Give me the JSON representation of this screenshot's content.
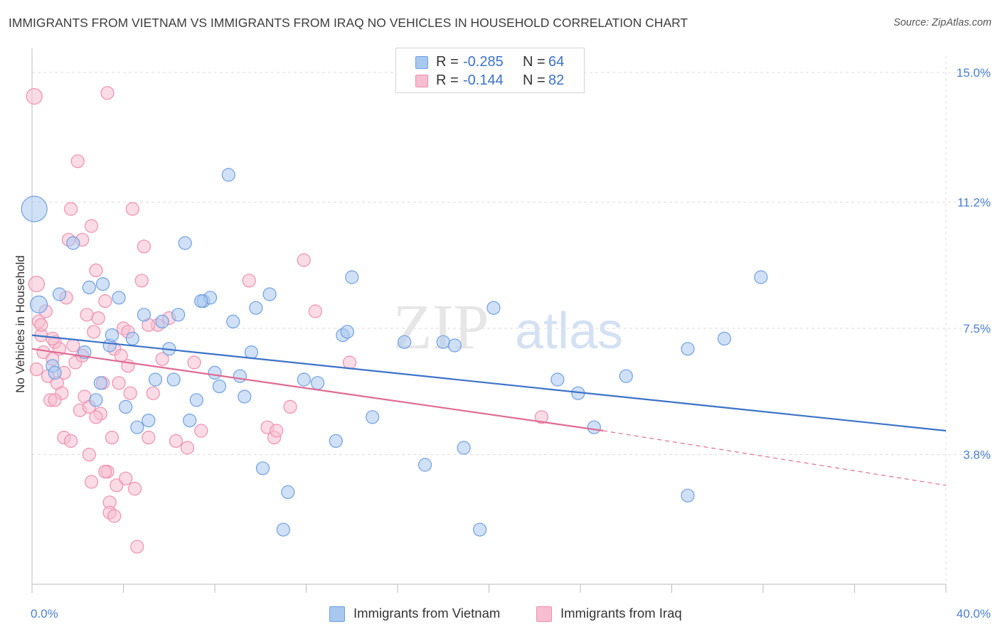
{
  "title": "IMMIGRANTS FROM VIETNAM VS IMMIGRANTS FROM IRAQ NO VEHICLES IN HOUSEHOLD CORRELATION CHART",
  "source": "Source: ZipAtlas.com",
  "watermark": {
    "zip": "ZIP",
    "atlas": "atlas"
  },
  "colors": {
    "vietnam_fill": "#a9c8f0",
    "vietnam_stroke": "#6f9fe0",
    "vietnam_line": "#3b72c9",
    "iraq_fill": "#f7bdd0",
    "iraq_stroke": "#ee8fb0",
    "iraq_line": "#e06a94",
    "grid": "#dcdcdc",
    "tick_text": "#4a7fd0"
  },
  "legend": {
    "rows": [
      {
        "r_label": "R =",
        "r_value": "-0.285",
        "n_label": "N =",
        "n_value": "64",
        "color": "#a9c8f0",
        "stroke": "#6f9fe0"
      },
      {
        "r_label": "R =",
        "r_value": "-0.144",
        "n_label": "N =",
        "n_value": "82",
        "color": "#f7bdd0",
        "stroke": "#ee8fb0"
      }
    ]
  },
  "bottom_legend": [
    "Immigrants from Vietnam",
    "Immigrants from Iraq"
  ],
  "chart_data": {
    "type": "scatter",
    "title": "IMMIGRANTS FROM VIETNAM VS IMMIGRANTS FROM IRAQ NO VEHICLES IN HOUSEHOLD CORRELATION CHART",
    "xlabel": "",
    "ylabel": "No Vehicles in Household",
    "xlim": [
      0,
      40
    ],
    "ylim": [
      0,
      15.5
    ],
    "x_tick_labels": [
      "0.0%",
      "40.0%"
    ],
    "y_ticks": [
      3.8,
      7.5,
      11.2,
      15.0
    ],
    "y_tick_labels": [
      "3.8%",
      "7.5%",
      "11.2%",
      "15.0%"
    ],
    "grid": true,
    "series": [
      {
        "name": "Immigrants from Vietnam",
        "r": -0.285,
        "n": 64,
        "trend": {
          "x0": 0,
          "y0": 7.3,
          "x1": 40,
          "y1": 4.5,
          "dashed_from": null
        },
        "points": [
          [
            0.1,
            11.0,
            18
          ],
          [
            0.3,
            8.2,
            12
          ],
          [
            1.2,
            8.5,
            9
          ],
          [
            0.9,
            6.4,
            9
          ],
          [
            1.0,
            6.2,
            9
          ],
          [
            1.8,
            10.0,
            9
          ],
          [
            2.5,
            8.7,
            9
          ],
          [
            2.3,
            6.8,
            9
          ],
          [
            2.8,
            5.4,
            9
          ],
          [
            3.0,
            5.9,
            9
          ],
          [
            3.1,
            8.8,
            9
          ],
          [
            3.4,
            7.0,
            9
          ],
          [
            3.5,
            7.3,
            9
          ],
          [
            3.8,
            8.4,
            9
          ],
          [
            4.1,
            5.2,
            9
          ],
          [
            4.4,
            7.2,
            9
          ],
          [
            4.6,
            4.6,
            9
          ],
          [
            4.9,
            7.9,
            9
          ],
          [
            5.1,
            4.8,
            9
          ],
          [
            5.4,
            6.0,
            9
          ],
          [
            5.7,
            7.7,
            9
          ],
          [
            6.0,
            6.9,
            9
          ],
          [
            6.2,
            6.0,
            9
          ],
          [
            6.4,
            7.9,
            9
          ],
          [
            6.7,
            10.0,
            9
          ],
          [
            6.9,
            4.8,
            9
          ],
          [
            7.2,
            5.4,
            9
          ],
          [
            7.5,
            8.3,
            9
          ],
          [
            7.8,
            8.4,
            9
          ],
          [
            8.0,
            6.2,
            9
          ],
          [
            8.2,
            5.8,
            9
          ],
          [
            8.6,
            12.0,
            9
          ],
          [
            8.8,
            7.7,
            9
          ],
          [
            9.1,
            6.1,
            9
          ],
          [
            9.3,
            5.5,
            9
          ],
          [
            9.6,
            6.8,
            9
          ],
          [
            9.8,
            8.1,
            9
          ],
          [
            10.1,
            3.4,
            9
          ],
          [
            10.4,
            8.5,
            9
          ],
          [
            11.0,
            1.6,
            9
          ],
          [
            11.2,
            2.7,
            9
          ],
          [
            11.9,
            6.0,
            9
          ],
          [
            12.5,
            5.9,
            9
          ],
          [
            13.3,
            4.2,
            9
          ],
          [
            13.6,
            7.3,
            9
          ],
          [
            13.8,
            7.4,
            9
          ],
          [
            14.0,
            9.0,
            9
          ],
          [
            14.9,
            4.9,
            9
          ],
          [
            16.3,
            7.1,
            9
          ],
          [
            17.2,
            3.5,
            9
          ],
          [
            18.0,
            7.1,
            9
          ],
          [
            18.5,
            7.0,
            9
          ],
          [
            18.9,
            4.0,
            9
          ],
          [
            19.6,
            1.6,
            9
          ],
          [
            20.2,
            8.1,
            9
          ],
          [
            23.0,
            6.0,
            9
          ],
          [
            23.9,
            5.6,
            9
          ],
          [
            24.6,
            4.6,
            9
          ],
          [
            26.0,
            6.1,
            9
          ],
          [
            28.7,
            6.9,
            9
          ],
          [
            28.7,
            2.6,
            9
          ],
          [
            30.3,
            7.2,
            9
          ],
          [
            31.9,
            9.0,
            9
          ],
          [
            7.4,
            8.3,
            9
          ]
        ]
      },
      {
        "name": "Immigrants from Iraq",
        "r": -0.144,
        "n": 82,
        "trend": {
          "x0": 0,
          "y0": 6.9,
          "x1": 25,
          "y1": 4.5,
          "dashed_to_x": 40,
          "dashed_to_y": 2.9
        },
        "points": [
          [
            0.1,
            14.3,
            11
          ],
          [
            0.2,
            8.8,
            11
          ],
          [
            0.3,
            7.7,
            9
          ],
          [
            0.4,
            7.3,
            9
          ],
          [
            0.5,
            6.8,
            9
          ],
          [
            0.6,
            8.0,
            9
          ],
          [
            0.7,
            6.1,
            9
          ],
          [
            0.8,
            5.4,
            9
          ],
          [
            0.9,
            6.6,
            9
          ],
          [
            1.0,
            7.1,
            9
          ],
          [
            1.1,
            5.9,
            9
          ],
          [
            1.2,
            6.9,
            9
          ],
          [
            1.3,
            5.6,
            9
          ],
          [
            1.4,
            4.3,
            9
          ],
          [
            1.5,
            8.4,
            9
          ],
          [
            1.6,
            10.1,
            9
          ],
          [
            1.7,
            11.0,
            9
          ],
          [
            1.8,
            7.0,
            9
          ],
          [
            1.9,
            6.5,
            9
          ],
          [
            2.0,
            12.4,
            9
          ],
          [
            2.1,
            5.1,
            9
          ],
          [
            2.2,
            6.7,
            9
          ],
          [
            2.3,
            5.5,
            9
          ],
          [
            2.4,
            7.9,
            9
          ],
          [
            2.5,
            3.8,
            9
          ],
          [
            2.6,
            3.0,
            9
          ],
          [
            2.7,
            7.4,
            9
          ],
          [
            2.8,
            9.2,
            9
          ],
          [
            2.9,
            7.8,
            9
          ],
          [
            3.0,
            5.0,
            9
          ],
          [
            3.1,
            5.9,
            9
          ],
          [
            3.2,
            8.3,
            9
          ],
          [
            3.3,
            3.3,
            9
          ],
          [
            3.4,
            2.4,
            9
          ],
          [
            3.5,
            4.3,
            9
          ],
          [
            3.6,
            6.9,
            9
          ],
          [
            3.7,
            2.9,
            9
          ],
          [
            3.8,
            5.9,
            9
          ],
          [
            3.9,
            6.7,
            9
          ],
          [
            4.0,
            7.5,
            9
          ],
          [
            4.1,
            3.1,
            9
          ],
          [
            4.2,
            6.4,
            9
          ],
          [
            4.3,
            5.6,
            9
          ],
          [
            4.4,
            11.0,
            9
          ],
          [
            4.5,
            2.8,
            9
          ],
          [
            4.6,
            1.1,
            9
          ],
          [
            4.8,
            8.9,
            9
          ],
          [
            4.9,
            9.9,
            9
          ],
          [
            5.1,
            4.3,
            9
          ],
          [
            5.3,
            5.6,
            9
          ],
          [
            5.5,
            7.6,
            9
          ],
          [
            5.7,
            6.6,
            9
          ],
          [
            6.0,
            7.8,
            9
          ],
          [
            6.3,
            4.2,
            9
          ],
          [
            6.8,
            4.0,
            9
          ],
          [
            7.1,
            6.5,
            9
          ],
          [
            7.4,
            4.5,
            9
          ],
          [
            9.5,
            8.9,
            9
          ],
          [
            10.3,
            4.6,
            9
          ],
          [
            10.6,
            4.3,
            9
          ],
          [
            10.7,
            4.5,
            9
          ],
          [
            11.3,
            5.2,
            9
          ],
          [
            11.9,
            9.5,
            9
          ],
          [
            12.4,
            8.0,
            9
          ],
          [
            13.9,
            6.5,
            9
          ],
          [
            22.3,
            4.9,
            9
          ],
          [
            0.2,
            6.3,
            9
          ],
          [
            1.0,
            5.4,
            9
          ],
          [
            1.4,
            6.2,
            9
          ],
          [
            2.2,
            10.1,
            9
          ],
          [
            3.4,
            2.1,
            9
          ],
          [
            3.6,
            2.0,
            9
          ],
          [
            3.2,
            3.3,
            9
          ],
          [
            2.5,
            5.2,
            9
          ],
          [
            1.7,
            4.2,
            9
          ],
          [
            0.9,
            7.2,
            9
          ],
          [
            0.4,
            7.6,
            9
          ],
          [
            3.3,
            14.4,
            9
          ],
          [
            2.6,
            10.5,
            9
          ],
          [
            4.2,
            7.4,
            9
          ],
          [
            5.1,
            7.6,
            9
          ],
          [
            2.8,
            4.9,
            9
          ]
        ]
      }
    ]
  }
}
